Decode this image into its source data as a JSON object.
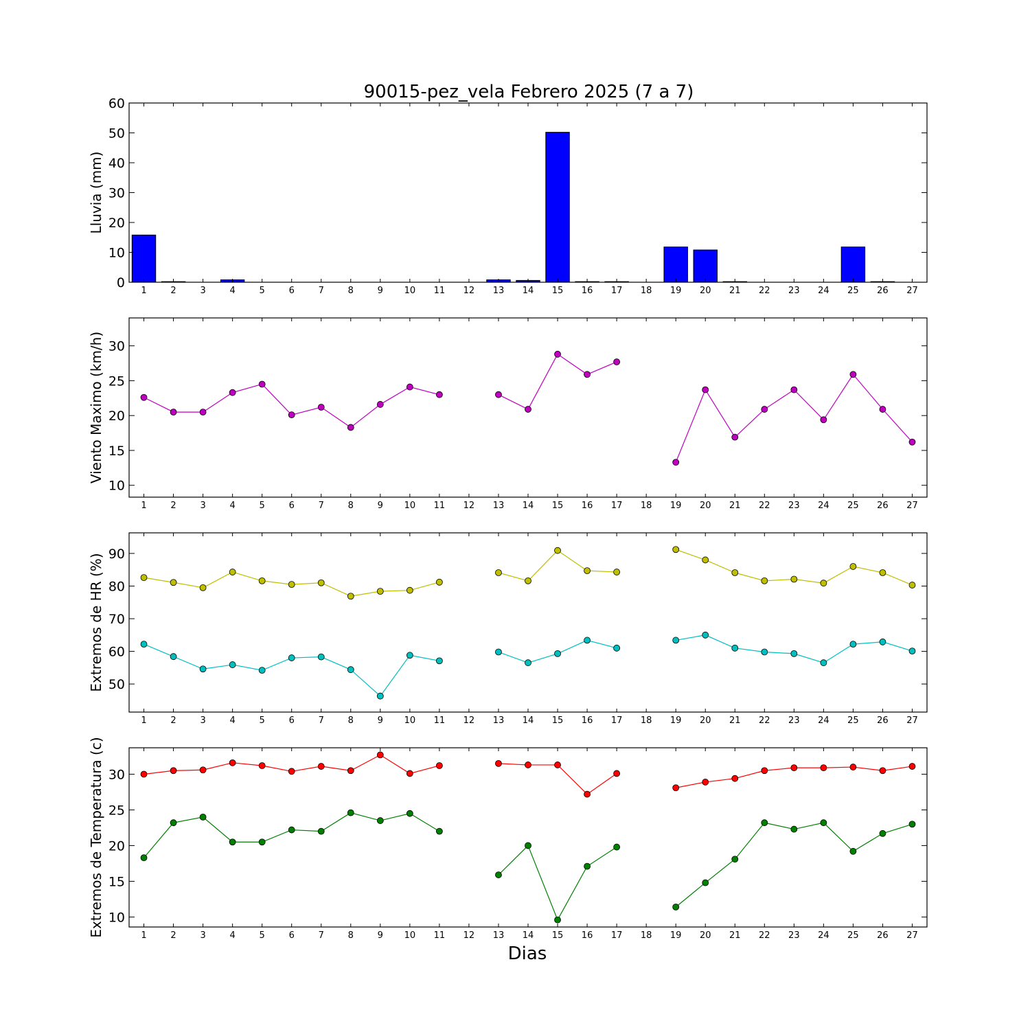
{
  "title": "90015-pez_vela Febrero 2025  (7 a 7)",
  "xlabel": "Dias",
  "chart_data": [
    {
      "type": "bar",
      "ylabel": "Lluvia (mm)",
      "ylim": [
        0,
        60
      ],
      "yticks": [
        0,
        10,
        20,
        30,
        40,
        50,
        60
      ],
      "categories": [
        1,
        2,
        3,
        4,
        5,
        6,
        7,
        8,
        9,
        10,
        11,
        12,
        13,
        14,
        15,
        16,
        17,
        18,
        19,
        20,
        21,
        22,
        23,
        24,
        25,
        26,
        27
      ],
      "series": [
        {
          "color": "#0000ff",
          "values": [
            15.8,
            0.2,
            0,
            0.8,
            0,
            0,
            0,
            0,
            0,
            0,
            0,
            null,
            0.8,
            0.6,
            50.2,
            0.2,
            0.2,
            null,
            11.8,
            10.8,
            0.2,
            0,
            0,
            0,
            11.8,
            0.2,
            null
          ]
        }
      ]
    },
    {
      "type": "line",
      "ylabel": "Viento Maximo (km/h)",
      "ylim": [
        8.3,
        34
      ],
      "yticks": [
        10,
        15,
        20,
        25,
        30
      ],
      "categories": [
        1,
        2,
        3,
        4,
        5,
        6,
        7,
        8,
        9,
        10,
        11,
        12,
        13,
        14,
        15,
        16,
        17,
        18,
        19,
        20,
        21,
        22,
        23,
        24,
        25,
        26,
        27
      ],
      "series": [
        {
          "color": "#bf00bf",
          "values": [
            22.6,
            20.5,
            20.5,
            23.3,
            24.5,
            20.1,
            21.2,
            18.3,
            21.6,
            24.1,
            23.0,
            null,
            23.0,
            20.9,
            28.8,
            25.9,
            27.7,
            null,
            13.3,
            23.7,
            16.9,
            20.9,
            23.7,
            19.4,
            25.9,
            20.9,
            16.2
          ]
        }
      ]
    },
    {
      "type": "line",
      "ylabel": "Extremos de HR (%)",
      "ylim": [
        41.4,
        96.3
      ],
      "yticks": [
        50,
        60,
        70,
        80,
        90
      ],
      "categories": [
        1,
        2,
        3,
        4,
        5,
        6,
        7,
        8,
        9,
        10,
        11,
        12,
        13,
        14,
        15,
        16,
        17,
        18,
        19,
        20,
        21,
        22,
        23,
        24,
        25,
        26,
        27
      ],
      "series": [
        {
          "color": "#bfbf00",
          "values": [
            82.6,
            81.1,
            79.5,
            84.3,
            81.6,
            80.5,
            81.0,
            76.9,
            78.4,
            78.7,
            81.2,
            null,
            84.1,
            81.6,
            90.9,
            84.7,
            84.3,
            null,
            91.2,
            88.0,
            84.1,
            81.6,
            82.1,
            80.9,
            86.0,
            84.1,
            80.3
          ]
        },
        {
          "color": "#00bfbf",
          "values": [
            62.2,
            58.4,
            54.6,
            55.9,
            54.2,
            58.0,
            58.3,
            54.4,
            46.3,
            58.8,
            57.1,
            null,
            59.8,
            56.5,
            59.3,
            63.4,
            61.0,
            null,
            63.4,
            65.0,
            61.0,
            59.8,
            59.3,
            56.5,
            62.2,
            62.9,
            60.1
          ]
        }
      ]
    },
    {
      "type": "line",
      "ylabel": "Extremos de Temperatura (c)",
      "ylim": [
        8.6,
        33.7
      ],
      "yticks": [
        10,
        15,
        20,
        25,
        30
      ],
      "categories": [
        1,
        2,
        3,
        4,
        5,
        6,
        7,
        8,
        9,
        10,
        11,
        12,
        13,
        14,
        15,
        16,
        17,
        18,
        19,
        20,
        21,
        22,
        23,
        24,
        25,
        26,
        27
      ],
      "series": [
        {
          "color": "#ff0000",
          "values": [
            30.0,
            30.5,
            30.6,
            31.6,
            31.2,
            30.4,
            31.1,
            30.5,
            32.7,
            30.1,
            31.2,
            null,
            31.5,
            31.3,
            31.3,
            27.2,
            30.1,
            null,
            28.1,
            28.9,
            29.4,
            30.5,
            30.9,
            30.9,
            31.0,
            30.5,
            31.1
          ]
        },
        {
          "color": "#008000",
          "values": [
            18.3,
            23.2,
            24.0,
            20.5,
            20.5,
            22.2,
            22.0,
            24.6,
            23.5,
            24.5,
            22.0,
            null,
            15.9,
            20.0,
            9.6,
            17.1,
            19.8,
            null,
            11.4,
            14.8,
            18.1,
            23.2,
            22.3,
            23.2,
            19.2,
            21.7,
            23.0
          ]
        }
      ]
    }
  ]
}
